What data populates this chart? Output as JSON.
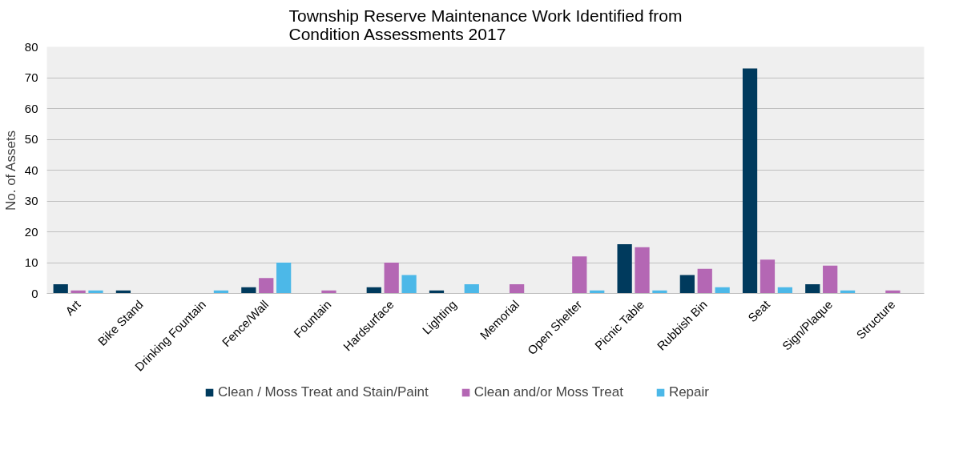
{
  "chart_data": {
    "type": "bar",
    "title": "Township Reserve Maintenance Work Identified from\nCondition Assessments 2017",
    "ylabel": "No. of Assets",
    "categories": [
      "Art",
      "Bike Stand",
      "Drinking Fountain",
      "Fence/Wall",
      "Fountain",
      "Hardsurface",
      "Lighting",
      "Memorial",
      "Open Shelter",
      "Picnic Table",
      "Rubbish Bin",
      "Seat",
      "Sign/Plaque",
      "Structure"
    ],
    "series": [
      {
        "name": "Clean / Moss Treat and Stain/Paint",
        "color": "#003a5d",
        "values": [
          3,
          1,
          null,
          2,
          null,
          2,
          1,
          null,
          null,
          16,
          6,
          73,
          3,
          null
        ]
      },
      {
        "name": "Clean and/or Moss Treat",
        "color": "#b467b4",
        "values": [
          1,
          null,
          null,
          5,
          1,
          10,
          null,
          3,
          12,
          15,
          8,
          11,
          9,
          1
        ]
      },
      {
        "name": "Repair",
        "color": "#4cb8e8",
        "values": [
          1,
          null,
          1,
          10,
          null,
          6,
          3,
          null,
          1,
          1,
          2,
          2,
          1,
          null
        ]
      }
    ],
    "ylim": [
      0,
      80
    ],
    "yticks": [
      0,
      10,
      20,
      30,
      40,
      50,
      60,
      70,
      80
    ],
    "grid": "y",
    "legend": "bottom"
  }
}
